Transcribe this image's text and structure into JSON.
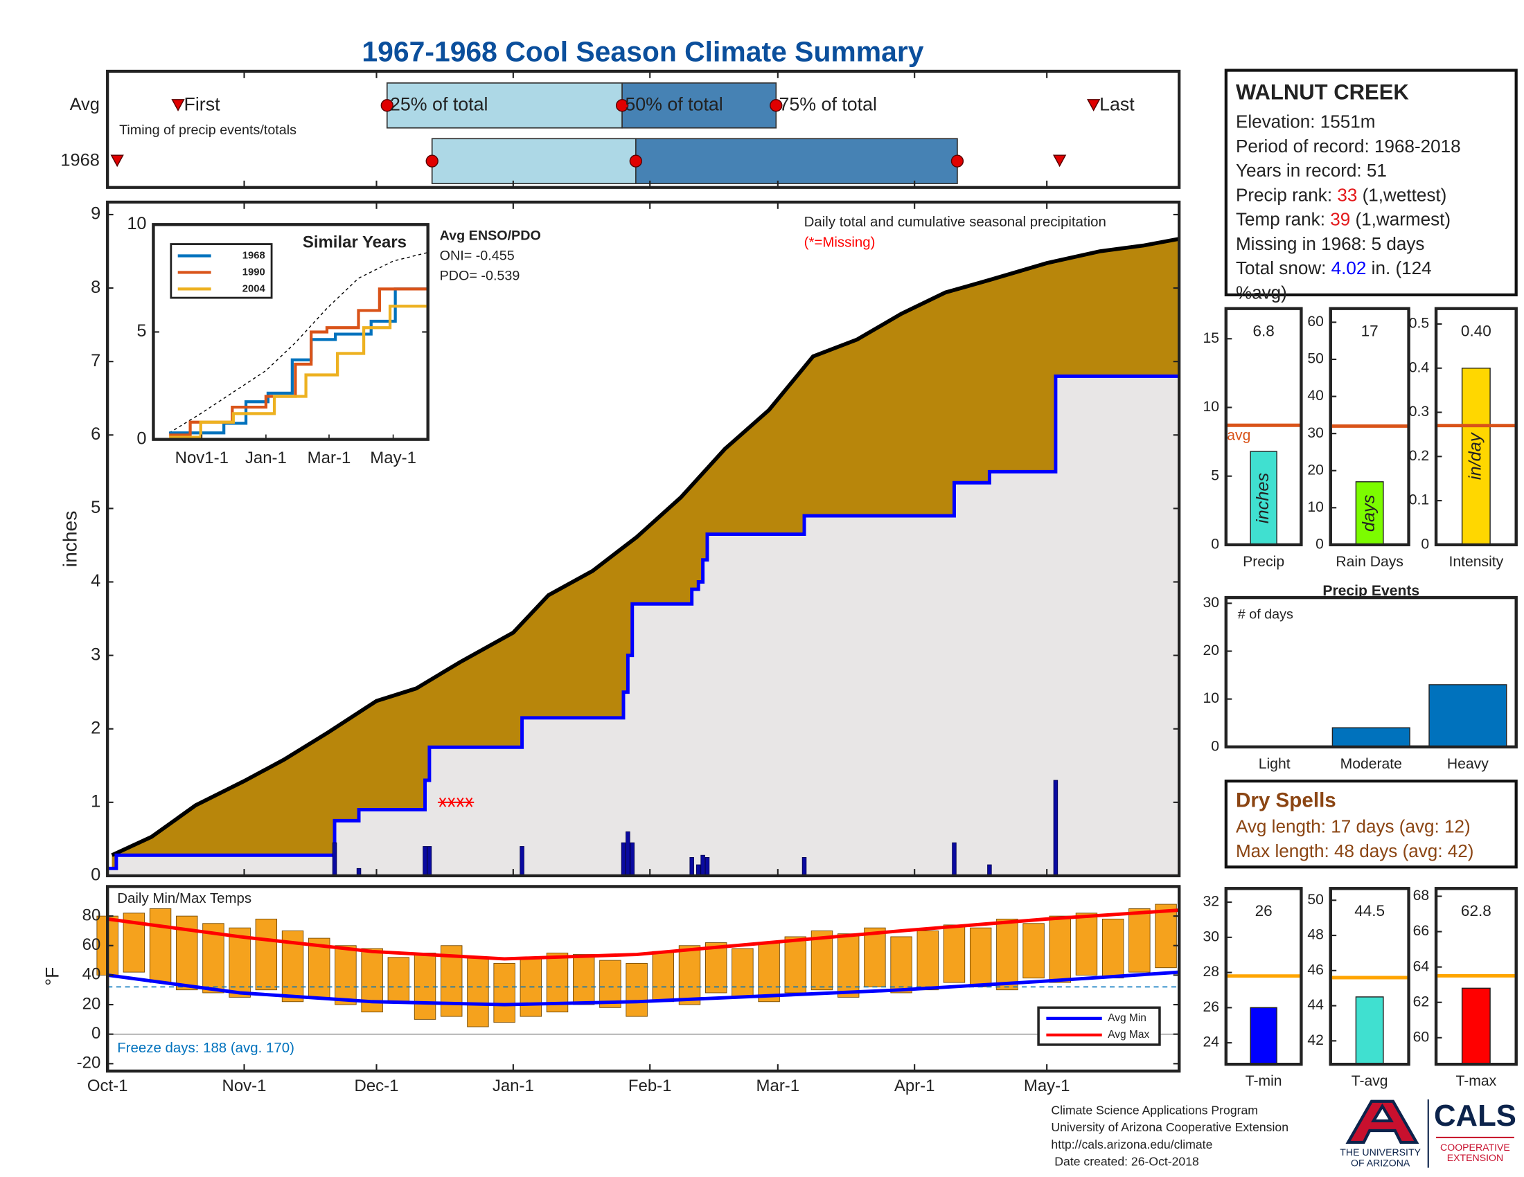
{
  "title": "1967-1968 Cool Season Climate Summary",
  "season_axis": {
    "xlim": [
      0,
      243
    ],
    "xticks": [
      {
        "value": 0,
        "label": "Oct-1"
      },
      {
        "value": 31,
        "label": "Nov-1"
      },
      {
        "value": 61,
        "label": "Dec-1"
      },
      {
        "value": 92,
        "label": "Jan-1"
      },
      {
        "value": 123,
        "label": "Feb-1"
      },
      {
        "value": 152,
        "label": "Mar-1"
      },
      {
        "value": 183,
        "label": "Apr-1"
      },
      {
        "value": 213,
        "label": "May-1"
      }
    ]
  },
  "station": {
    "name": "WALNUT CREEK",
    "lines": [
      {
        "text": "Elevation: 1551m"
      },
      {
        "text": "Period of record: 1968-2018"
      },
      {
        "text": "Years in record: 51"
      },
      {
        "text": "Precip rank: ",
        "value": 33,
        "note": " (1,wettest)",
        "color": "#e31a1c"
      },
      {
        "text": "Temp rank: ",
        "value": 39,
        "note": " (1,warmest)",
        "color": "#e31a1c"
      },
      {
        "text": "Missing in 1968: 5 days"
      },
      {
        "text": "Total snow: ",
        "value": 4.02,
        "note": " in. (124",
        "color": "#0000ff"
      },
      {
        "text": "%avg)"
      }
    ]
  },
  "dry_spells": {
    "title": "Dry Spells",
    "color": "#8b4513",
    "lines": [
      "Avg length: 17 days (avg: 12)",
      "Max length: 48 days (avg: 42)"
    ]
  },
  "footer": [
    "Climate Science Applications Program",
    "University of Arizona Cooperative Extension",
    "http://cals.arizona.edu/climate",
    " Date created: 26-Oct-2018"
  ],
  "logo": {
    "university": [
      "THE UNIVERSITY",
      "OF ARIZONA"
    ],
    "cals": "CALS",
    "extension": [
      "COOPERATIVE",
      "EXTENSION"
    ]
  },
  "chart_data": [
    {
      "type": "timing",
      "annotation": "Timing of precip events/totals",
      "marker_labels": [
        "First",
        "25% of total",
        "50% of total",
        "75% of total",
        "Last"
      ],
      "colors": [
        "#add8e6",
        "#4682b4"
      ],
      "series": [
        {
          "name": "Avg",
          "values": [
            16,
            63.4,
            116.7,
            151.6,
            223.6
          ]
        },
        {
          "name": "1968",
          "values": [
            2.2,
            73.6,
            119.8,
            192.7,
            215.9
          ]
        }
      ]
    },
    {
      "type": "precip",
      "annotation": "Daily total and cumulative seasonal precipitation",
      "missing_label": "(*=Missing)",
      "ylabel": "inches",
      "ylim": [
        0,
        9.17
      ],
      "yticks": [
        0,
        1,
        2,
        3,
        4,
        5,
        6,
        7,
        8,
        9
      ],
      "colors": {
        "avg_fill": "#b8860b",
        "observed_fill": "#e8e6e6",
        "avg_line": "#000000",
        "observed_line": "#0000ff",
        "daily": "#0a0aa0",
        "missing": "#ff0000"
      },
      "avg": {
        "x": [
          1,
          10,
          20,
          31,
          40,
          50,
          61,
          70,
          80,
          92,
          100,
          110,
          120,
          130,
          140,
          150,
          160,
          170,
          180,
          190,
          200,
          213,
          225,
          235,
          243
        ],
        "values": [
          0.28,
          0.53,
          0.96,
          1.29,
          1.58,
          1.95,
          2.38,
          2.55,
          2.91,
          3.31,
          3.82,
          4.15,
          4.61,
          5.15,
          5.81,
          6.34,
          7.07,
          7.3,
          7.65,
          7.94,
          8.11,
          8.34,
          8.5,
          8.58,
          8.67
        ]
      },
      "observed": {
        "x": [
          0,
          2,
          51.5,
          57,
          72,
          73,
          94,
          117,
          118,
          119,
          132.5,
          134,
          135,
          136,
          158,
          192,
          200,
          215
        ],
        "values": [
          0.1,
          0.28,
          0.75,
          0.9,
          1.3,
          1.75,
          2.15,
          2.5,
          3,
          3.7,
          3.9,
          4,
          4.3,
          4.65,
          4.9,
          5.35,
          5.5,
          6.8
        ]
      },
      "daily": {
        "x": [
          51.5,
          57,
          72,
          73,
          94,
          117,
          118,
          119,
          132.5,
          134,
          135,
          136,
          158,
          192,
          200,
          215
        ],
        "values": [
          0.45,
          0.1,
          0.4,
          0.4,
          0.4,
          0.45,
          0.6,
          0.45,
          0.25,
          0.15,
          0.28,
          0.25,
          0.25,
          0.45,
          0.15,
          1.3
        ]
      },
      "missing": {
        "x": [
          76,
          78,
          80,
          82
        ],
        "values": [
          1,
          1,
          1,
          1
        ]
      }
    },
    {
      "type": "line",
      "title": "Similar Years",
      "drawstyle": "steps",
      "xlim": [
        -15,
        246
      ],
      "xticks": [
        {
          "value": 31,
          "label": "Nov1-1"
        },
        {
          "value": 92,
          "label": "Jan-1"
        },
        {
          "value": 152,
          "label": "Mar-1"
        },
        {
          "value": 213,
          "label": "May-1"
        }
      ],
      "ylim": [
        0,
        10
      ],
      "yticks": [
        0,
        5,
        10
      ],
      "series": [
        {
          "name": "1968",
          "color": "#0072bd",
          "x": [
            0,
            52,
            73,
            94,
            117,
            135,
            158,
            192,
            215,
            246
          ],
          "values": [
            0.3,
            0.75,
            1.75,
            2.15,
            3.7,
            4.65,
            4.9,
            5.5,
            7,
            7
          ]
        },
        {
          "name": "1990",
          "color": "#d95319",
          "x": [
            0,
            20,
            60,
            92,
            120,
            135,
            150,
            180,
            200,
            246
          ],
          "values": [
            0.2,
            0.8,
            1.5,
            2,
            3.5,
            5,
            5.2,
            6,
            7,
            7
          ]
        },
        {
          "name": "2004",
          "color": "#edb120",
          "x": [
            0,
            30,
            61,
            100,
            130,
            160,
            185,
            210,
            246
          ],
          "values": [
            0.1,
            0.8,
            1.2,
            2,
            3,
            4,
            5.2,
            6.2,
            6.2
          ]
        }
      ],
      "avg_line": {
        "x": [
          0,
          30,
          61,
          92,
          120,
          150,
          180,
          213,
          246
        ],
        "values": [
          0.3,
          1.2,
          2.2,
          3.2,
          4.5,
          6.1,
          7.5,
          8.3,
          8.7
        ]
      },
      "annotations": [
        "Avg ENSO/PDO",
        "ONI= -0.455",
        "PDO= -0.539"
      ]
    },
    {
      "type": "bar",
      "categories": [
        "Precip"
      ],
      "values": [
        6.8
      ],
      "avg": 8.7,
      "avg_label": "avg",
      "unit_label": "inches",
      "color": "#40e0d0",
      "avg_color": "#d95319",
      "ylim": [
        0,
        17.2
      ],
      "yticks": [
        0,
        5,
        10,
        15
      ]
    },
    {
      "type": "bar",
      "categories": [
        "Rain Days"
      ],
      "values": [
        17
      ],
      "avg": 32,
      "unit_label": "days",
      "color": "#7cfc00",
      "avg_color": "#d95319",
      "ylim": [
        0,
        63.7
      ],
      "yticks": [
        0,
        10,
        20,
        30,
        40,
        50,
        60
      ]
    },
    {
      "type": "bar",
      "categories": [
        "Intensity"
      ],
      "values": [
        0.4
      ],
      "value_labels": [
        "0.40"
      ],
      "avg": 0.27,
      "unit_label": "in/day",
      "color": "#ffd700",
      "avg_color": "#d95319",
      "ylim": [
        0,
        0.535
      ],
      "yticks": [
        0,
        0.1,
        0.2,
        0.3,
        0.4,
        0.5
      ]
    },
    {
      "type": "bar",
      "title": "Precip Events",
      "annotation": "# of days",
      "categories": [
        "Light",
        "Moderate",
        "Heavy"
      ],
      "values": [
        0,
        4,
        13
      ],
      "color": "#0072bd",
      "ylim": [
        0,
        31.2
      ],
      "yticks": [
        0,
        10,
        20,
        30
      ]
    },
    {
      "type": "temperature",
      "title": "Daily Min/Max Temps",
      "annotation": "Freeze days: 188 (avg. 170)",
      "ylabel": "°F",
      "ylim": [
        -25,
        100
      ],
      "yticks": [
        -20,
        0,
        20,
        40,
        60,
        80
      ],
      "freeze": 32,
      "bar_color": "#f5a21d",
      "freeze_color": "#0072bd",
      "daily": {
        "x": [
          0,
          6,
          12,
          18,
          24,
          30,
          36,
          42,
          48,
          54,
          60,
          66,
          72,
          78,
          84,
          90,
          96,
          102,
          108,
          114,
          120,
          126,
          132,
          138,
          144,
          150,
          156,
          162,
          168,
          174,
          180,
          186,
          192,
          198,
          204,
          210,
          216,
          222,
          228,
          234,
          240
        ],
        "min": [
          40,
          42,
          35,
          30,
          28,
          25,
          30,
          22,
          25,
          20,
          15,
          22,
          10,
          12,
          5,
          8,
          12,
          15,
          20,
          18,
          12,
          22,
          20,
          28,
          25,
          22,
          28,
          30,
          25,
          32,
          28,
          30,
          35,
          32,
          30,
          38,
          35,
          40,
          38,
          42,
          45
        ],
        "max": [
          80,
          82,
          85,
          80,
          75,
          72,
          78,
          70,
          65,
          60,
          58,
          52,
          55,
          60,
          52,
          48,
          52,
          55,
          54,
          50,
          48,
          56,
          60,
          62,
          58,
          62,
          66,
          70,
          68,
          72,
          66,
          70,
          74,
          72,
          78,
          75,
          80,
          82,
          78,
          85,
          88
        ]
      },
      "series": [
        {
          "name": "Avg Min",
          "color": "#0000ff",
          "x": [
            0,
            30,
            60,
            90,
            120,
            150,
            180,
            213,
            243
          ],
          "values": [
            40,
            28,
            22,
            20,
            22,
            26,
            30,
            36,
            42
          ]
        },
        {
          "name": "Avg Max",
          "color": "#ff0000",
          "x": [
            0,
            30,
            60,
            90,
            120,
            150,
            180,
            213,
            243
          ],
          "values": [
            78,
            66,
            56,
            51,
            54,
            62,
            70,
            78,
            84
          ]
        }
      ]
    },
    {
      "type": "bar",
      "categories": [
        "T-min"
      ],
      "values": [
        26
      ],
      "avg": 27.8,
      "color": "#0000ff",
      "avg_color": "#ffa500",
      "ylim": [
        22.78,
        32.78
      ],
      "yticks": [
        24,
        26,
        28,
        30,
        32
      ]
    },
    {
      "type": "bar",
      "categories": [
        "T-avg"
      ],
      "values": [
        44.5
      ],
      "avg": 45.6,
      "color": "#40e0d0",
      "avg_color": "#ffa500",
      "ylim": [
        40.67,
        50.67
      ],
      "yticks": [
        42,
        44,
        46,
        48,
        50
      ]
    },
    {
      "type": "bar",
      "categories": [
        "T-max"
      ],
      "values": [
        62.8
      ],
      "avg": 63.5,
      "color": "#ff0000",
      "avg_color": "#ffa500",
      "ylim": [
        58.5,
        68.44
      ],
      "yticks": [
        60,
        62,
        64,
        66,
        68
      ]
    }
  ]
}
